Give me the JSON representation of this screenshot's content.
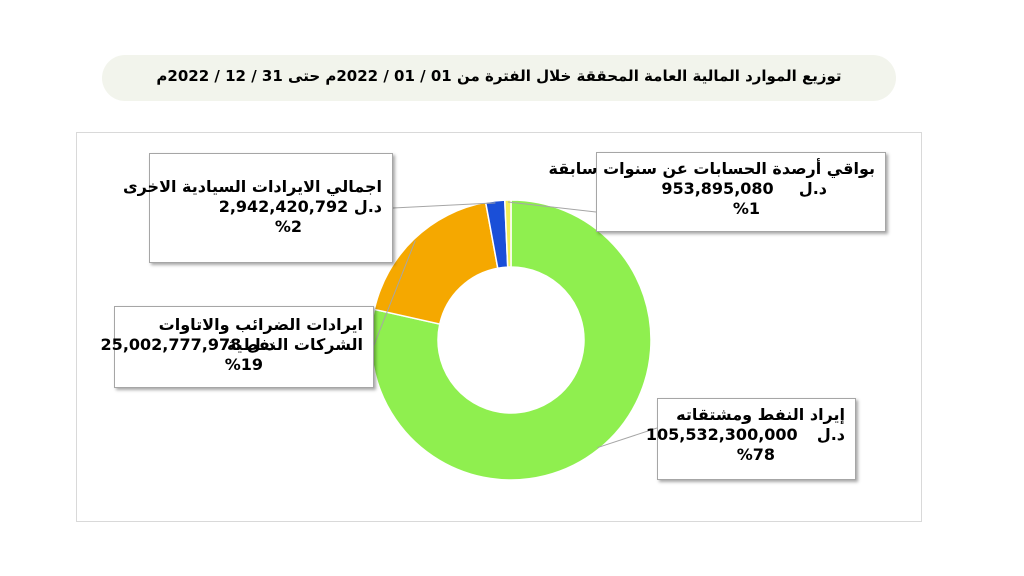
{
  "title": "توزيع الموارد المالية العامة المحققة خلال الفترة من  01 / 01 / 2022م   حتى 31 / 12 / 2022م",
  "chart_data": {
    "type": "pie",
    "subtype": "doughnut",
    "legend": "none",
    "slices": [
      {
        "key": "oil",
        "label": "إيراد النفط ومشتقاته",
        "value": 105532300000,
        "value_text": "105,532,300,000",
        "unit": "د.ل",
        "percent": 78,
        "percent_text": "%78",
        "color": "#8fef4f"
      },
      {
        "key": "taxes",
        "label": "ايرادات الضرائب والاتاوات الشركات النفطية",
        "value": 25002777978,
        "value_text": "25,002,777,978",
        "unit": "د.ل",
        "percent": 19,
        "percent_text": "%19",
        "color": "#f5a800"
      },
      {
        "key": "sovereign",
        "label": "اجمالي الايرادات السيادية الاخرى",
        "value": 2942420792,
        "value_text": "2,942,420,792",
        "unit": "د.ل",
        "percent": 2,
        "percent_text": "%2",
        "color": "#1a4fd8"
      },
      {
        "key": "balances",
        "label": "بواقي أرصدة الحسابات عن سنوات سابقة",
        "value": 953895080,
        "value_text": "953,895,080",
        "unit": "د.ل",
        "percent": 1,
        "percent_text": "%1",
        "color": "#f2ee58"
      }
    ]
  }
}
